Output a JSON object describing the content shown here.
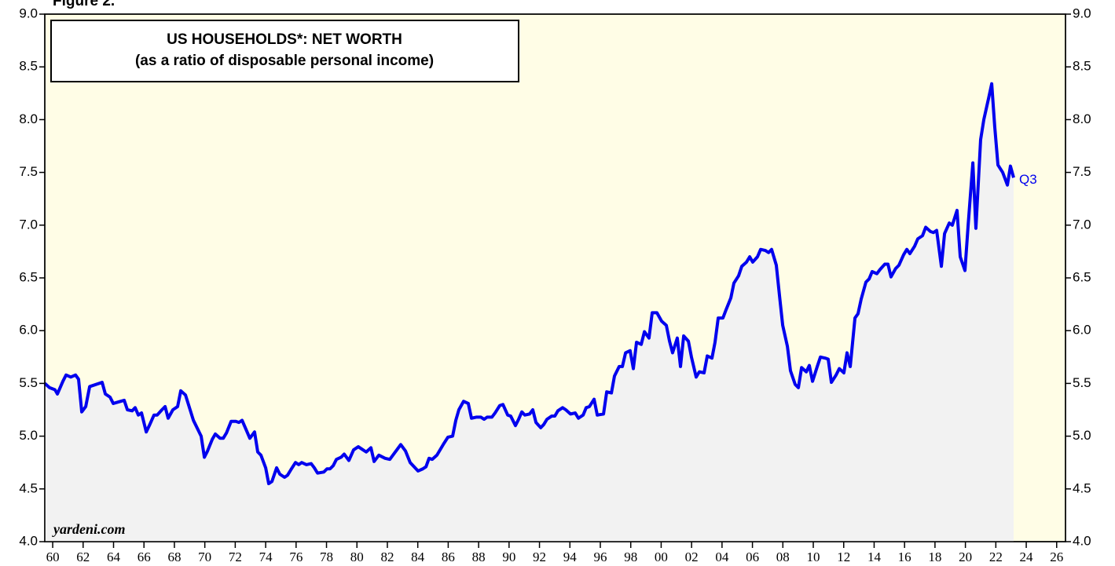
{
  "chart_data": {
    "type": "line",
    "label": "Figure 2.",
    "title": "US HOUSEHOLDS*: NET WORTH",
    "subtitle": "(as a ratio of disposable personal income)",
    "source": "yardeni.com",
    "annotation": "Q3",
    "color": "#0000ee",
    "area_color": "#f2f2f2",
    "background": "#fffde6",
    "xlim": [
      1959.48,
      2026.58
    ],
    "ylim": [
      4,
      9
    ],
    "yticks": [
      {
        "value": 4,
        "label": "4.0"
      },
      4.5,
      {
        "value": 5,
        "label": "5.0"
      },
      5.5,
      {
        "value": 6,
        "label": "6.0"
      },
      6.5,
      {
        "value": 7,
        "label": "7.0"
      },
      7.5,
      {
        "value": 8,
        "label": "8.0"
      },
      8.5,
      {
        "value": 9,
        "label": "9.0"
      }
    ],
    "xticks": [
      {
        "value": 1960,
        "label": "60"
      },
      {
        "value": 1962,
        "label": "62"
      },
      {
        "value": 1964,
        "label": "64"
      },
      {
        "value": 1966,
        "label": "66"
      },
      {
        "value": 1968,
        "label": "68"
      },
      {
        "value": 1970,
        "label": "70"
      },
      {
        "value": 1972,
        "label": "72"
      },
      {
        "value": 1974,
        "label": "74"
      },
      {
        "value": 1976,
        "label": "76"
      },
      {
        "value": 1978,
        "label": "78"
      },
      {
        "value": 1980,
        "label": "80"
      },
      {
        "value": 1982,
        "label": "82"
      },
      {
        "value": 1984,
        "label": "84"
      },
      {
        "value": 1986,
        "label": "86"
      },
      {
        "value": 1988,
        "label": "88"
      },
      {
        "value": 1990,
        "label": "90"
      },
      {
        "value": 1992,
        "label": "92"
      },
      {
        "value": 1994,
        "label": "94"
      },
      {
        "value": 1996,
        "label": "96"
      },
      {
        "value": 1998,
        "label": "98"
      },
      {
        "value": 2000,
        "label": "00"
      },
      {
        "value": 2002,
        "label": "02"
      },
      {
        "value": 2004,
        "label": "04"
      },
      {
        "value": 2006,
        "label": "06"
      },
      {
        "value": 2008,
        "label": "08"
      },
      {
        "value": 2010,
        "label": "10"
      },
      {
        "value": 2012,
        "label": "12"
      },
      {
        "value": 2014,
        "label": "14"
      },
      {
        "value": 2016,
        "label": "16"
      },
      {
        "value": 2018,
        "label": "18"
      },
      {
        "value": 2020,
        "label": "20"
      },
      {
        "value": 2022,
        "label": "22"
      },
      {
        "value": 2024,
        "label": "24"
      },
      {
        "value": 2026,
        "label": "26"
      }
    ],
    "x": [
      1959.48,
      1959.79,
      1960.15,
      1960.31,
      1960.67,
      1960.88,
      1961.19,
      1961.5,
      1961.7,
      1961.91,
      1962.17,
      1962.43,
      1963.25,
      1963.46,
      1963.77,
      1963.98,
      1964.7,
      1964.91,
      1965.22,
      1965.42,
      1965.63,
      1965.84,
      1966.15,
      1966.35,
      1966.66,
      1966.87,
      1967.18,
      1967.39,
      1967.59,
      1967.9,
      1968.21,
      1968.42,
      1968.73,
      1969.25,
      1969.76,
      1969.97,
      1970.18,
      1970.49,
      1970.69,
      1971.0,
      1971.21,
      1971.42,
      1971.73,
      1972.04,
      1972.24,
      1972.45,
      1972.66,
      1972.96,
      1973.27,
      1973.48,
      1973.69,
      1974.0,
      1974.2,
      1974.41,
      1974.72,
      1974.93,
      1975.24,
      1975.44,
      1975.65,
      1975.96,
      1976.17,
      1976.37,
      1976.68,
      1976.99,
      1977.2,
      1977.41,
      1977.82,
      1978.03,
      1978.23,
      1978.44,
      1978.65,
      1978.96,
      1979.16,
      1979.47,
      1979.78,
      1980.09,
      1980.4,
      1980.61,
      1980.92,
      1981.13,
      1981.44,
      1981.85,
      1982.16,
      1982.47,
      1982.88,
      1983.19,
      1983.5,
      1984.02,
      1984.33,
      1984.54,
      1984.74,
      1984.95,
      1985.26,
      1985.67,
      1985.98,
      1986.29,
      1986.5,
      1986.7,
      1987.01,
      1987.32,
      1987.53,
      1987.84,
      1988.15,
      1988.36,
      1988.56,
      1988.87,
      1989.08,
      1989.39,
      1989.6,
      1989.91,
      1990.11,
      1990.42,
      1990.63,
      1990.84,
      1991.04,
      1991.35,
      1991.56,
      1991.77,
      1992.08,
      1992.28,
      1992.49,
      1992.8,
      1993.01,
      1993.21,
      1993.52,
      1993.73,
      1994.04,
      1994.35,
      1994.56,
      1994.87,
      1995.07,
      1995.28,
      1995.59,
      1995.8,
      1996.21,
      1996.42,
      1996.73,
      1996.93,
      1997.24,
      1997.45,
      1997.66,
      1997.96,
      1998.17,
      1998.38,
      1998.69,
      1998.9,
      1999.2,
      1999.41,
      1999.72,
      2000.03,
      2000.34,
      2000.55,
      2000.75,
      2001.06,
      2001.27,
      2001.48,
      2001.79,
      2001.99,
      2002.3,
      2002.51,
      2002.82,
      2003.03,
      2003.34,
      2003.54,
      2003.75,
      2004.06,
      2004.27,
      2004.58,
      2004.78,
      2005.09,
      2005.3,
      2005.61,
      2005.82,
      2006.02,
      2006.33,
      2006.54,
      2006.85,
      2007.06,
      2007.26,
      2007.57,
      2007.78,
      2007.99,
      2008.3,
      2008.5,
      2008.81,
      2009.02,
      2009.23,
      2009.54,
      2009.74,
      2009.95,
      2010.26,
      2010.47,
      2010.78,
      2010.98,
      2011.19,
      2011.5,
      2011.71,
      2012.01,
      2012.22,
      2012.43,
      2012.74,
      2012.94,
      2013.15,
      2013.46,
      2013.67,
      2013.87,
      2014.18,
      2014.39,
      2014.7,
      2014.91,
      2015.11,
      2015.42,
      2015.63,
      2015.94,
      2016.15,
      2016.35,
      2016.66,
      2016.87,
      2017.18,
      2017.39,
      2017.7,
      2017.9,
      2018.11,
      2018.42,
      2018.63,
      2018.94,
      2019.14,
      2019.45,
      2019.66,
      2019.97,
      2020.18,
      2020.49,
      2020.69,
      2021.0,
      2021.21,
      2021.52,
      2021.73,
      2021.93,
      2022.14,
      2022.45,
      2022.76,
      2022.96,
      2023.17
    ],
    "values": [
      5.5,
      5.46,
      5.44,
      5.4,
      5.52,
      5.58,
      5.56,
      5.58,
      5.54,
      5.23,
      5.28,
      5.47,
      5.51,
      5.4,
      5.37,
      5.31,
      5.34,
      5.25,
      5.24,
      5.27,
      5.2,
      5.22,
      5.04,
      5.1,
      5.2,
      5.2,
      5.25,
      5.28,
      5.17,
      5.25,
      5.28,
      5.43,
      5.39,
      5.15,
      5.0,
      4.8,
      4.86,
      4.97,
      5.02,
      4.98,
      4.98,
      5.03,
      5.14,
      5.14,
      5.13,
      5.15,
      5.08,
      4.98,
      5.04,
      4.85,
      4.82,
      4.7,
      4.55,
      4.57,
      4.7,
      4.64,
      4.61,
      4.63,
      4.68,
      4.75,
      4.73,
      4.75,
      4.73,
      4.74,
      4.7,
      4.65,
      4.66,
      4.69,
      4.69,
      4.72,
      4.78,
      4.8,
      4.83,
      4.77,
      4.87,
      4.9,
      4.87,
      4.85,
      4.89,
      4.76,
      4.82,
      4.79,
      4.78,
      4.84,
      4.92,
      4.86,
      4.75,
      4.67,
      4.69,
      4.71,
      4.79,
      4.78,
      4.82,
      4.92,
      4.99,
      5.0,
      5.15,
      5.25,
      5.33,
      5.31,
      5.17,
      5.18,
      5.18,
      5.16,
      5.18,
      5.18,
      5.22,
      5.29,
      5.3,
      5.2,
      5.19,
      5.1,
      5.16,
      5.23,
      5.2,
      5.21,
      5.25,
      5.13,
      5.08,
      5.11,
      5.16,
      5.19,
      5.19,
      5.24,
      5.27,
      5.25,
      5.21,
      5.22,
      5.17,
      5.2,
      5.27,
      5.28,
      5.35,
      5.2,
      5.21,
      5.42,
      5.41,
      5.57,
      5.66,
      5.66,
      5.79,
      5.81,
      5.64,
      5.89,
      5.87,
      5.99,
      5.93,
      6.17,
      6.17,
      6.09,
      6.05,
      5.9,
      5.79,
      5.93,
      5.66,
      5.95,
      5.9,
      5.75,
      5.56,
      5.61,
      5.6,
      5.76,
      5.74,
      5.89,
      6.12,
      6.12,
      6.2,
      6.31,
      6.45,
      6.52,
      6.61,
      6.65,
      6.7,
      6.65,
      6.7,
      6.77,
      6.76,
      6.74,
      6.77,
      6.62,
      6.33,
      6.05,
      5.85,
      5.62,
      5.49,
      5.46,
      5.65,
      5.61,
      5.67,
      5.52,
      5.66,
      5.75,
      5.74,
      5.73,
      5.51,
      5.58,
      5.64,
      5.6,
      5.79,
      5.66,
      6.12,
      6.16,
      6.3,
      6.46,
      6.49,
      6.56,
      6.54,
      6.58,
      6.63,
      6.63,
      6.51,
      6.59,
      6.62,
      6.72,
      6.77,
      6.73,
      6.8,
      6.87,
      6.9,
      6.98,
      6.94,
      6.93,
      6.95,
      6.61,
      6.92,
      7.02,
      7.0,
      7.14,
      6.7,
      6.57,
      7.0,
      7.59,
      6.97,
      7.81,
      8.0,
      8.2,
      8.34,
      7.93,
      7.57,
      7.5,
      7.38,
      7.56,
      7.45
    ]
  }
}
